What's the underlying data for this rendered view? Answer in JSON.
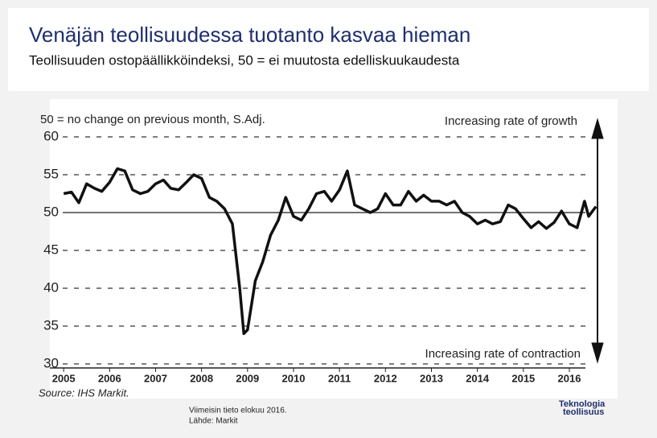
{
  "header": {
    "title": "Venäjän teollisuudessa tuotanto kasvaa hieman",
    "subtitle": "Teollisuuden ostopäällikköindeksi, 50 = ei muutosta edelliskuukaudesta"
  },
  "chart_data": {
    "type": "line",
    "annotations": [
      "50 = no change on previous month, S.Adj.",
      "Increasing rate of growth",
      "Increasing rate of contraction",
      "Source: IHS Markit."
    ],
    "x": [
      2005.0,
      2005.17,
      2005.33,
      2005.5,
      2005.67,
      2005.83,
      2006.0,
      2006.17,
      2006.33,
      2006.5,
      2006.67,
      2006.83,
      2007.0,
      2007.17,
      2007.33,
      2007.5,
      2007.67,
      2007.83,
      2008.0,
      2008.17,
      2008.33,
      2008.5,
      2008.67,
      2008.83,
      2008.92,
      2009.0,
      2009.17,
      2009.33,
      2009.5,
      2009.67,
      2009.83,
      2010.0,
      2010.17,
      2010.33,
      2010.5,
      2010.67,
      2010.83,
      2011.0,
      2011.17,
      2011.33,
      2011.5,
      2011.67,
      2011.83,
      2012.0,
      2012.17,
      2012.33,
      2012.5,
      2012.67,
      2012.83,
      2013.0,
      2013.17,
      2013.33,
      2013.5,
      2013.67,
      2013.83,
      2014.0,
      2014.17,
      2014.33,
      2014.5,
      2014.67,
      2014.83,
      2015.0,
      2015.17,
      2015.33,
      2015.5,
      2015.67,
      2015.83,
      2016.0,
      2016.17,
      2016.33,
      2016.42,
      2016.58
    ],
    "series": [
      {
        "color": "#111111",
        "values": [
          52.5,
          52.7,
          51.3,
          53.8,
          53.2,
          52.8,
          54.0,
          55.8,
          55.5,
          53.0,
          52.5,
          52.8,
          53.8,
          54.3,
          53.2,
          53.0,
          54.0,
          55.0,
          54.5,
          52.0,
          51.5,
          50.5,
          48.5,
          40.0,
          34.0,
          34.5,
          41.0,
          43.5,
          47.0,
          49.0,
          52.0,
          49.5,
          49.0,
          50.5,
          52.5,
          52.8,
          51.5,
          53.0,
          55.5,
          51.0,
          50.5,
          50.0,
          50.5,
          52.5,
          51.0,
          51.0,
          52.8,
          51.5,
          52.3,
          51.5,
          51.5,
          51.0,
          51.5,
          50.0,
          49.5,
          48.5,
          49.0,
          48.5,
          48.8,
          51.0,
          50.5,
          49.2,
          48.0,
          48.8,
          47.9,
          48.7,
          50.2,
          48.5,
          48.0,
          51.5,
          49.5,
          50.8
        ]
      }
    ],
    "xlim": [
      2004.7,
      2016.35
    ],
    "xticks": [
      2005,
      2006,
      2007,
      2008,
      2009,
      2010,
      2011,
      2012,
      2013,
      2014,
      2015,
      2016
    ],
    "ylim": [
      30,
      60
    ],
    "yticks": [
      30,
      35,
      40,
      45,
      50,
      55,
      60
    ],
    "reference_line": 50,
    "grid": true
  },
  "footer": {
    "notes": [
      "Viimeisin tieto elokuu 2016.",
      "Lähde: Markit"
    ],
    "logo": [
      "Teknologia",
      "teollisuus"
    ]
  }
}
